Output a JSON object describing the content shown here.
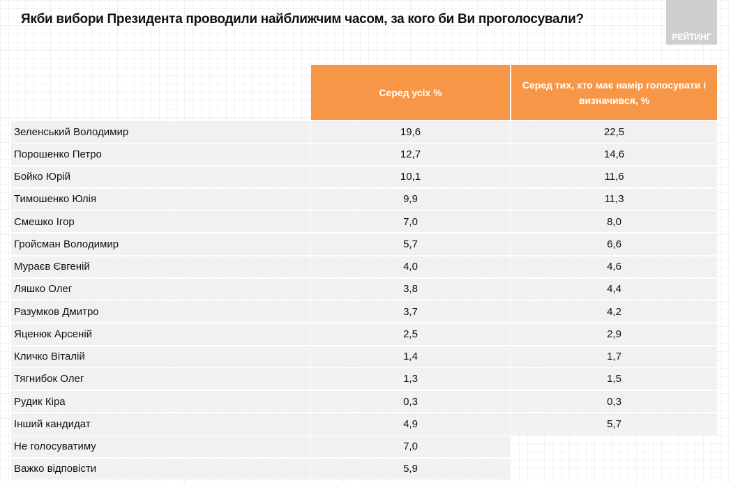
{
  "title": "Якби вибори Президента проводили найближчим часом, за кого би Ви проголосували?",
  "logo_text": "РЕЙТИНГ",
  "table": {
    "headers": [
      "",
      "Серед усіх %",
      "Серед тих, хто має намір голосувати і визначився, %"
    ],
    "rows": [
      {
        "name": "Зеленський Володимир",
        "all": "19,6",
        "decided": "22,5"
      },
      {
        "name": "Порошенко Петро",
        "all": "12,7",
        "decided": "14,6"
      },
      {
        "name": "Бойко Юрій",
        "all": "10,1",
        "decided": "11,6"
      },
      {
        "name": "Тимошенко Юлія",
        "all": "9,9",
        "decided": "11,3"
      },
      {
        "name": "Смешко Ігор",
        "all": "7,0",
        "decided": "8,0"
      },
      {
        "name": "Гройсман Володимир",
        "all": "5,7",
        "decided": "6,6"
      },
      {
        "name": "Мураєв Євгеній",
        "all": "4,0",
        "decided": "4,6"
      },
      {
        "name": "Ляшко Олег",
        "all": "3,8",
        "decided": "4,4"
      },
      {
        "name": "Разумков Дмитро",
        "all": "3,7",
        "decided": "4,2"
      },
      {
        "name": "Яценюк  Арсеній",
        "all": "2,5",
        "decided": "2,9"
      },
      {
        "name": "Кличко Віталій",
        "all": "1,4",
        "decided": "1,7"
      },
      {
        "name": "Тягнибок Олег",
        "all": "1,3",
        "decided": "1,5"
      },
      {
        "name": "Рудик Кіра",
        "all": "0,3",
        "decided": "0,3"
      },
      {
        "name": "Інший кандидат",
        "all": "4,9",
        "decided": "5,7"
      },
      {
        "name": "Не голосуватиму",
        "all": "7,0",
        "decided": null
      },
      {
        "name": "Важко відповісти",
        "all": "5,9",
        "decided": null
      }
    ]
  }
}
